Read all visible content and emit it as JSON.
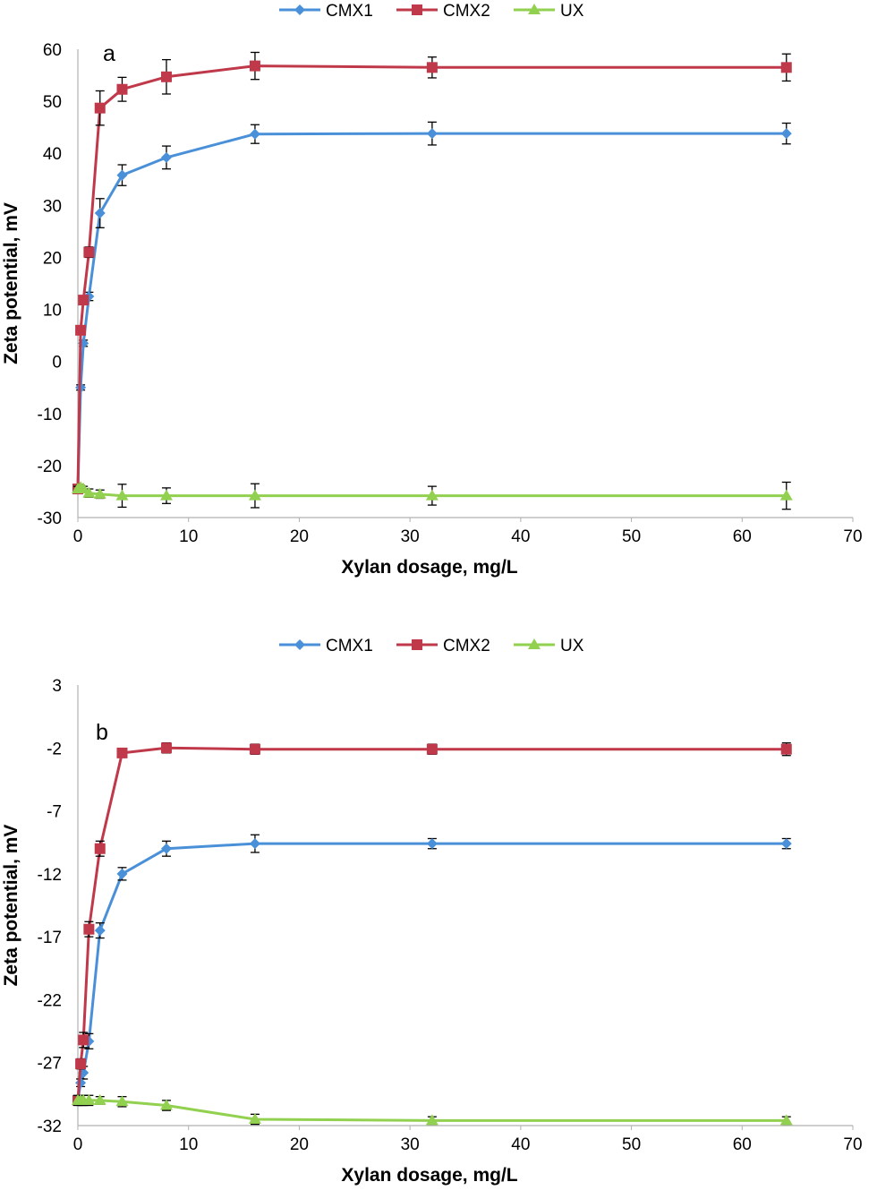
{
  "chart_data": [
    {
      "type": "line",
      "panel_label": "a",
      "xlabel": "Xylan dosage, mg/L",
      "ylabel": "Zeta potential, mV",
      "xlim": [
        0,
        70
      ],
      "ylim": [
        -30,
        60
      ],
      "x_ticks": [
        "0",
        "10",
        "20",
        "30",
        "40",
        "50",
        "60",
        "70"
      ],
      "y_ticks": [
        "-30",
        "-20",
        "-10",
        "0",
        "10",
        "20",
        "30",
        "40",
        "50",
        "60"
      ],
      "grid": false,
      "legend_position": "top",
      "x": [
        0,
        0.25,
        0.5,
        1,
        2,
        4,
        8,
        16,
        32,
        64
      ],
      "series": [
        {
          "name": "CMX1",
          "color": "#4a90d9",
          "marker": "diamond",
          "values": [
            -24.5,
            -5,
            3.5,
            12.5,
            28.5,
            35.8,
            39.2,
            43.7,
            43.8,
            43.8
          ],
          "errors": [
            0.5,
            0.5,
            0.6,
            0.8,
            2.8,
            2.0,
            2.2,
            1.8,
            2.2,
            2.0
          ]
        },
        {
          "name": "CMX2",
          "color": "#c0394a",
          "marker": "square",
          "values": [
            -24.5,
            6,
            11.8,
            21,
            48.7,
            52.3,
            54.7,
            56.8,
            56.5,
            56.5
          ],
          "errors": [
            0.5,
            0.5,
            0.6,
            1.0,
            3.3,
            2.3,
            3.3,
            2.6,
            2.0,
            2.6
          ]
        },
        {
          "name": "UX",
          "color": "#92d050",
          "marker": "triangle",
          "values": [
            -24.5,
            -24.2,
            -24.5,
            -25.3,
            -25.5,
            -25.8,
            -25.8,
            -25.8,
            -25.8,
            -25.8
          ],
          "errors": [
            0.5,
            0.4,
            0.5,
            0.8,
            0.8,
            2.2,
            1.5,
            2.3,
            1.8,
            2.6
          ]
        }
      ]
    },
    {
      "type": "line",
      "panel_label": "b",
      "xlabel": "Xylan dosage, mg/L",
      "ylabel": "Zeta potential, mV",
      "xlim": [
        0,
        70
      ],
      "ylim": [
        -32,
        3
      ],
      "x_ticks": [
        "0",
        "10",
        "20",
        "30",
        "40",
        "50",
        "60",
        "70"
      ],
      "y_ticks": [
        "-32",
        "-27",
        "-22",
        "-17",
        "-12",
        "-7",
        "-2",
        "3"
      ],
      "grid": false,
      "legend_position": "top",
      "x": [
        0,
        0.25,
        0.5,
        1,
        2,
        4,
        8,
        16,
        32,
        64
      ],
      "series": [
        {
          "name": "CMX1",
          "color": "#4a90d9",
          "marker": "diamond",
          "values": [
            -30,
            -28.6,
            -27.8,
            -25.3,
            -16.5,
            -12,
            -10,
            -9.6,
            -9.6,
            -9.6
          ],
          "errors": [
            0.3,
            0.3,
            0.5,
            0.6,
            0.6,
            0.5,
            0.6,
            0.7,
            0.4,
            0.4
          ]
        },
        {
          "name": "CMX2",
          "color": "#c0394a",
          "marker": "square",
          "values": [
            -30,
            -27.1,
            -25.2,
            -16.4,
            -10,
            -2.4,
            -2,
            -2.1,
            -2.1,
            -2.1
          ],
          "errors": [
            0.3,
            0.4,
            0.6,
            0.6,
            0.6,
            0.3,
            0.4,
            0.4,
            0.4,
            0.5
          ]
        },
        {
          "name": "UX",
          "color": "#92d050",
          "marker": "triangle",
          "values": [
            -30,
            -30,
            -30,
            -30,
            -30,
            -30.1,
            -30.4,
            -31.5,
            -31.6,
            -31.6
          ],
          "errors": [
            0.4,
            0.4,
            0.4,
            0.4,
            0.3,
            0.4,
            0.4,
            0.4,
            0.3,
            0.3
          ]
        }
      ]
    }
  ]
}
